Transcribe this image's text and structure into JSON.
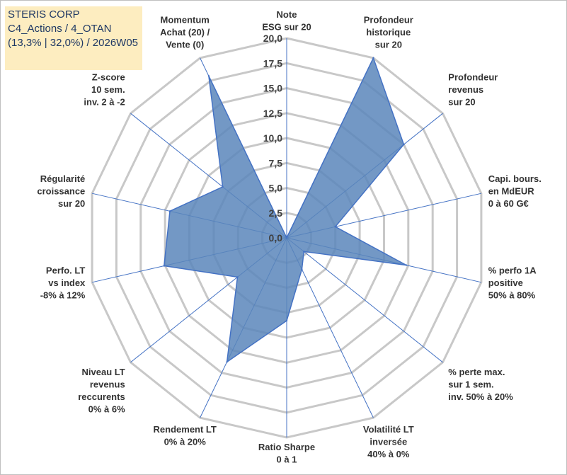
{
  "header": {
    "company": "STERIS CORP",
    "line2": "C4_Actions / 4_OTAN",
    "line3": "(13,3% | 32,0%) / 2026W05"
  },
  "colors": {
    "fill": "#5b86bb",
    "stroke": "#4472c4",
    "grid": "#c8c8c8",
    "spoke": "#4472c4",
    "box": "#fdedc0"
  },
  "chart_data": {
    "type": "radar",
    "rmin": 0,
    "rmax": 20,
    "tick_labels": [
      "0,0",
      "2,5",
      "5,0",
      "7,5",
      "10,0",
      "12,5",
      "15,0",
      "17,5",
      "20,0"
    ],
    "axes": [
      {
        "label": [
          "Note",
          "ESG sur 20"
        ],
        "value": 0
      },
      {
        "label": [
          "Profondeur",
          "historique",
          "sur 20"
        ],
        "value": 20
      },
      {
        "label": [
          "Profondeur",
          "revenus",
          "sur 20"
        ],
        "value": 15
      },
      {
        "label": [
          "Capi. bours.",
          "en MdEUR",
          "0 à 60 G€"
        ],
        "value": 5
      },
      {
        "label": [
          "% perfo 1A",
          "positive",
          "50% à 80%"
        ],
        "value": 12.3
      },
      {
        "label": [
          "% perte max.",
          "sur 1 sem.",
          "inv. 50% à 20%"
        ],
        "value": 2.2
      },
      {
        "label": [
          "Volatilité LT",
          "inversée",
          "40% à 0%"
        ],
        "value": 3.5
      },
      {
        "label": [
          "Ratio Sharpe",
          "0 à 1"
        ],
        "value": 8.3
      },
      {
        "label": [
          "Rendement LT",
          "0% à 20%"
        ],
        "value": 13.8
      },
      {
        "label": [
          "Niveau LT",
          "revenus",
          "reccurents",
          "0% à 6%"
        ],
        "value": 6.3
      },
      {
        "label": [
          "Perfo. LT",
          "vs index",
          "-8% à 12%"
        ],
        "value": 12.6
      },
      {
        "label": [
          "Régularité",
          "croissance",
          "sur 20"
        ],
        "value": 12
      },
      {
        "label": [
          "Z-score",
          "10 sem.",
          "inv. 2 à -2"
        ],
        "value": 8.2
      },
      {
        "label": [
          "Momentum",
          "Achat (20) /",
          "Vente (0)"
        ],
        "value": 18
      }
    ]
  }
}
